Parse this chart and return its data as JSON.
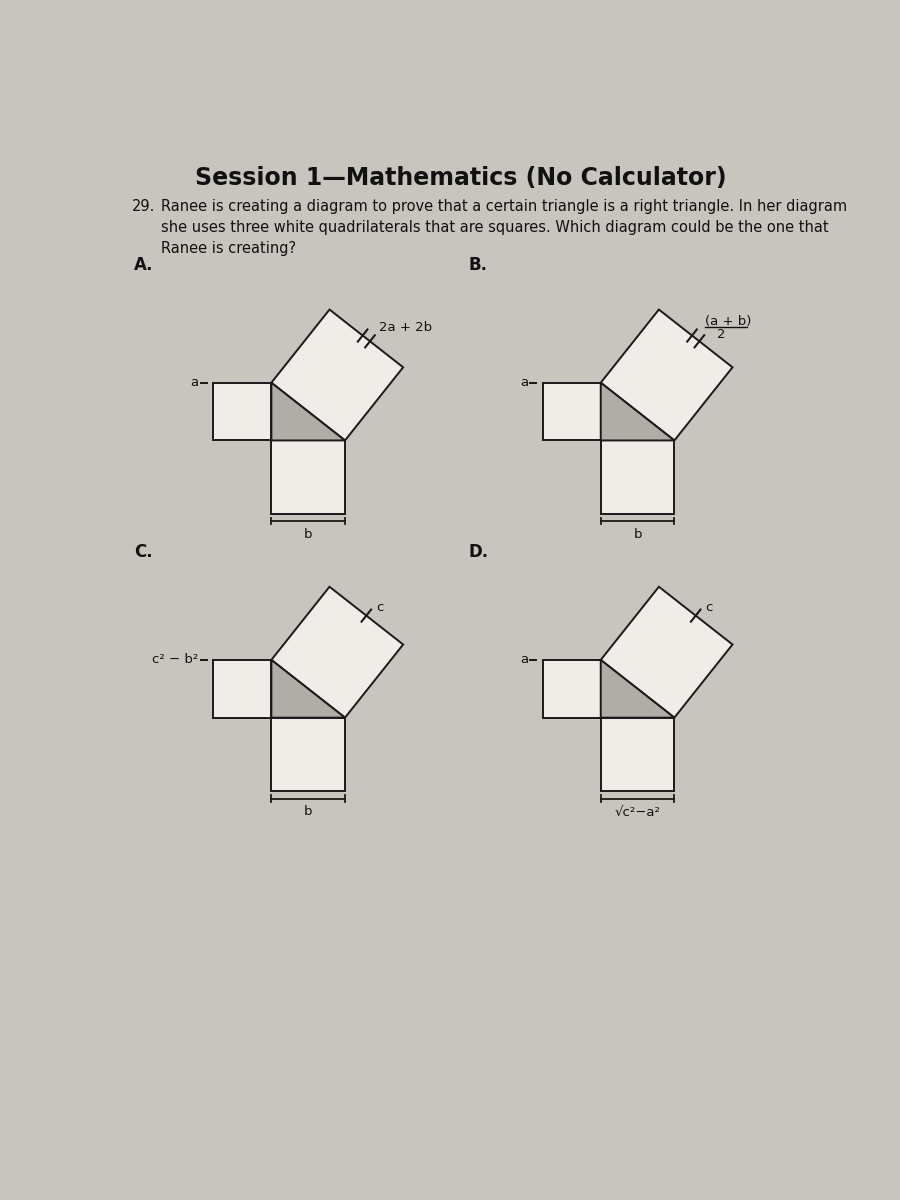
{
  "title": "Session 1—Mathematics (No Calculator)",
  "question_num": "29.",
  "question_text": "Ranee is creating a diagram to prove that a certain triangle is a right triangle. In her diagram\nshe uses three white quadrilaterals that are squares. Which diagram could be the one that\nRanee is creating?",
  "bg_color": "#c8c4be",
  "paper_color": "#e8e4de",
  "line_color": "#1a1a1a",
  "shade_color": "#b0aca6",
  "white_color": "#f0ede8",
  "label_A": "A.",
  "label_B": "B.",
  "label_C": "C.",
  "label_D": "D.",
  "label_a": "a",
  "label_b": "b",
  "label_top_A": "2a + 2b",
  "label_top_B_num": "(a + b)",
  "label_top_B_den": "2",
  "label_left_C": "c² − b²",
  "label_b_C": "b",
  "label_top_C": "c",
  "label_a_D": "a",
  "label_bottom_D": "√c²−a²",
  "label_top_D": "c",
  "title_fontsize": 17,
  "question_fontsize": 10.5,
  "label_fontsize": 12,
  "dim_fontsize": 9.5
}
